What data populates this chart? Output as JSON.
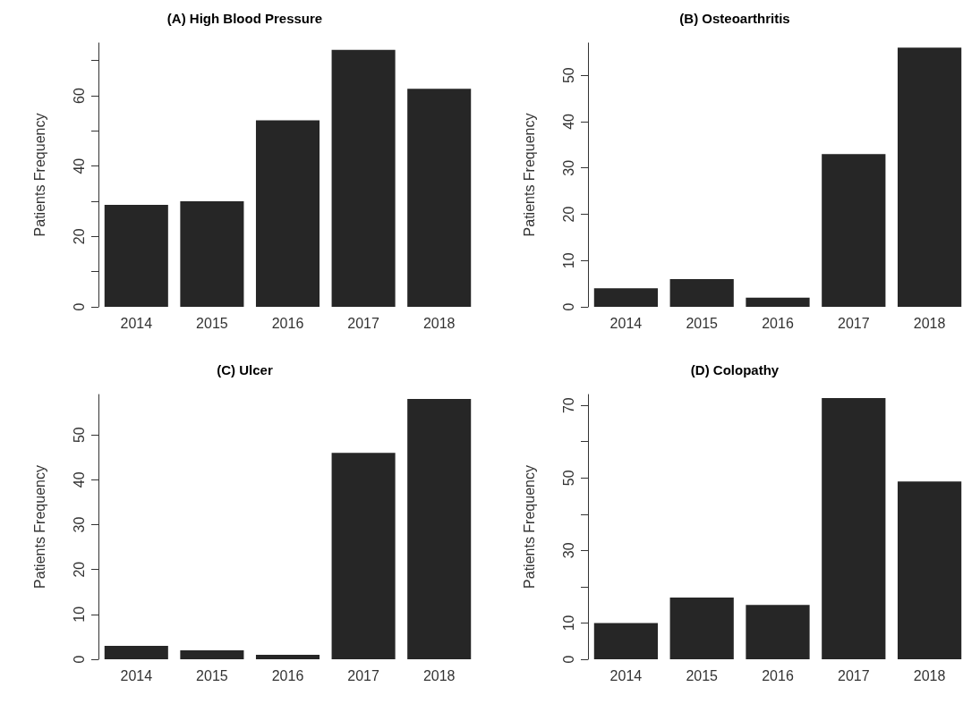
{
  "chart_data": [
    {
      "type": "bar",
      "title": "(A) High Blood Pressure",
      "ylabel": "Patients Frequency",
      "categories": [
        "2014",
        "2015",
        "2016",
        "2017",
        "2018"
      ],
      "values": [
        29,
        30,
        53,
        73,
        62
      ],
      "color": "#262626",
      "ylim": [
        0,
        75
      ],
      "yticks": [
        0,
        {
          "value": 10,
          "label": null
        },
        20,
        {
          "value": 30,
          "label": null
        },
        40,
        {
          "value": 50,
          "label": null
        },
        60,
        {
          "value": 70,
          "label": null
        }
      ],
      "grid": false
    },
    {
      "type": "bar",
      "title": "(B) Osteoarthritis",
      "ylabel": "Patients Frequency",
      "categories": [
        "2014",
        "2015",
        "2016",
        "2017",
        "2018"
      ],
      "values": [
        4,
        6,
        2,
        33,
        56
      ],
      "color": "#262626",
      "ylim": [
        0,
        57
      ],
      "yticks": [
        0,
        10,
        20,
        30,
        40,
        50
      ],
      "grid": false
    },
    {
      "type": "bar",
      "title": "(C) Ulcer",
      "ylabel": "Patients Frequency",
      "categories": [
        "2014",
        "2015",
        "2016",
        "2017",
        "2018"
      ],
      "values": [
        3,
        2,
        1,
        46,
        58
      ],
      "color": "#262626",
      "ylim": [
        0,
        59
      ],
      "yticks": [
        0,
        10,
        20,
        30,
        40,
        50
      ],
      "grid": false
    },
    {
      "type": "bar",
      "title": "(D) Colopathy",
      "ylabel": "Patients Frequency",
      "categories": [
        "2014",
        "2015",
        "2016",
        "2017",
        "2018"
      ],
      "values": [
        10,
        17,
        15,
        72,
        49
      ],
      "color": "#262626",
      "ylim": [
        0,
        73
      ],
      "yticks": [
        0,
        10,
        {
          "value": 20,
          "label": null
        },
        30,
        {
          "value": 40,
          "label": null
        },
        50,
        {
          "value": 60,
          "label": null
        },
        70
      ],
      "grid": false
    }
  ]
}
